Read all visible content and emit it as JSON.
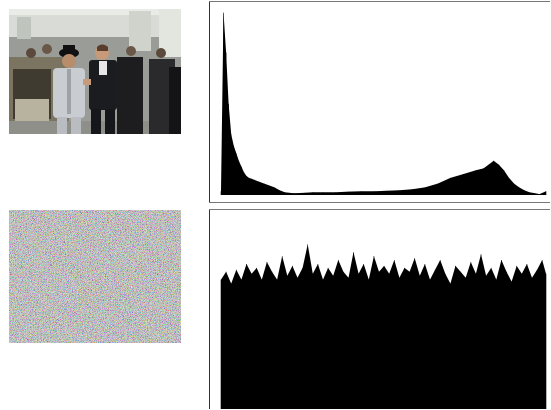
{
  "images": [
    {
      "subject": "photograph-color",
      "icon": "photo-thumbnail"
    },
    {
      "subject": "random-noise",
      "icon": "noise-thumbnail"
    }
  ],
  "chart_data": [
    {
      "type": "area",
      "color": "#000000",
      "xlim": [
        0,
        255
      ],
      "ylim": [
        0,
        1
      ],
      "x": [
        0,
        2,
        4,
        6,
        8,
        10,
        12,
        14,
        16,
        18,
        20,
        22,
        24,
        26,
        30,
        34,
        38,
        42,
        46,
        50,
        56,
        60,
        66,
        72,
        80,
        90,
        100,
        110,
        120,
        130,
        140,
        150,
        160,
        170,
        180,
        190,
        200,
        206,
        210,
        214,
        218,
        222,
        226,
        230,
        234,
        238,
        242,
        246,
        250,
        255
      ],
      "y": [
        0.02,
        0.96,
        0.75,
        0.48,
        0.32,
        0.26,
        0.22,
        0.18,
        0.15,
        0.12,
        0.1,
        0.09,
        0.085,
        0.08,
        0.07,
        0.06,
        0.05,
        0.04,
        0.025,
        0.015,
        0.01,
        0.01,
        0.012,
        0.015,
        0.015,
        0.015,
        0.018,
        0.02,
        0.02,
        0.022,
        0.025,
        0.03,
        0.04,
        0.06,
        0.09,
        0.11,
        0.13,
        0.14,
        0.16,
        0.18,
        0.16,
        0.13,
        0.09,
        0.06,
        0.04,
        0.025,
        0.015,
        0.01,
        0.005,
        0.02
      ]
    },
    {
      "type": "area",
      "color": "#000000",
      "xlim": [
        0,
        255
      ],
      "ylim": [
        0,
        1
      ],
      "x": [
        0,
        4,
        8,
        12,
        16,
        20,
        24,
        28,
        32,
        36,
        40,
        44,
        48,
        52,
        56,
        60,
        64,
        68,
        72,
        76,
        80,
        84,
        88,
        92,
        96,
        100,
        104,
        108,
        112,
        116,
        120,
        124,
        128,
        132,
        136,
        140,
        144,
        148,
        152,
        156,
        160,
        164,
        168,
        172,
        176,
        180,
        184,
        188,
        192,
        196,
        200,
        204,
        208,
        212,
        216,
        220,
        224,
        228,
        232,
        236,
        240,
        244,
        248,
        252,
        255
      ],
      "y": [
        0.66,
        0.7,
        0.64,
        0.71,
        0.66,
        0.74,
        0.69,
        0.72,
        0.66,
        0.75,
        0.7,
        0.66,
        0.78,
        0.68,
        0.73,
        0.67,
        0.72,
        0.84,
        0.69,
        0.74,
        0.66,
        0.72,
        0.68,
        0.76,
        0.7,
        0.67,
        0.8,
        0.69,
        0.74,
        0.66,
        0.78,
        0.7,
        0.73,
        0.69,
        0.76,
        0.67,
        0.72,
        0.7,
        0.77,
        0.68,
        0.74,
        0.66,
        0.71,
        0.76,
        0.69,
        0.64,
        0.73,
        0.7,
        0.67,
        0.75,
        0.69,
        0.79,
        0.68,
        0.72,
        0.66,
        0.76,
        0.7,
        0.65,
        0.73,
        0.69,
        0.74,
        0.67,
        0.71,
        0.76,
        0.69
      ]
    }
  ]
}
